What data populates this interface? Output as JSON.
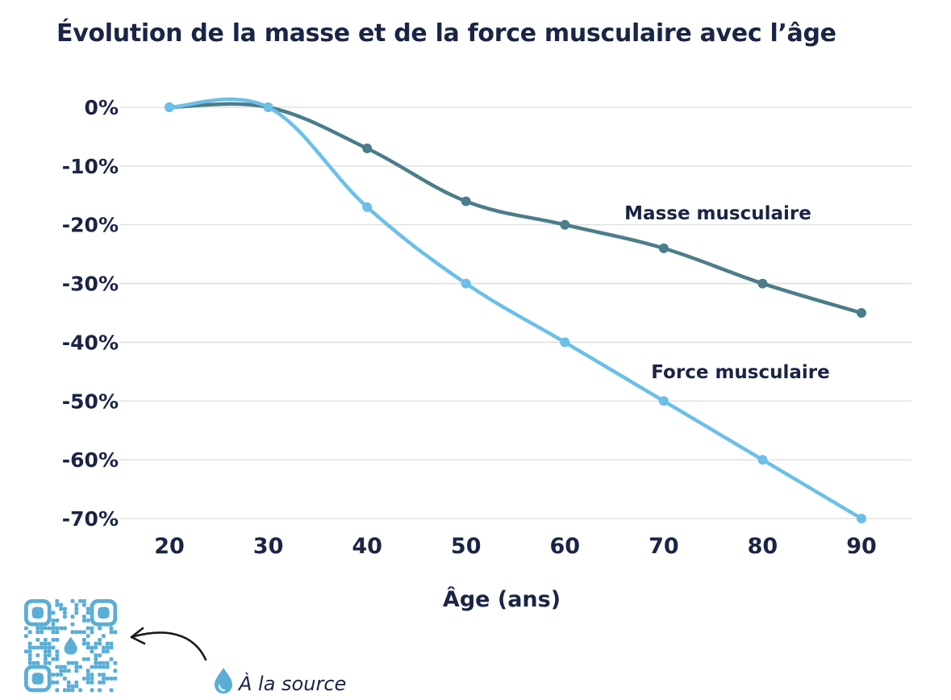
{
  "chart_data": {
    "type": "line",
    "title": "Évolution de la masse et de la force musculaire avec l’âge",
    "xlabel": "Âge (ans)",
    "ylabel": "",
    "x": [
      20,
      30,
      40,
      50,
      60,
      70,
      80,
      90
    ],
    "xlim": [
      20,
      90
    ],
    "ylim": [
      -70,
      0
    ],
    "y_ticks": [
      0,
      -10,
      -20,
      -30,
      -40,
      -50,
      -60,
      -70
    ],
    "y_tick_labels": [
      "0%",
      "-10%",
      "-20%",
      "-30%",
      "-40%",
      "-50%",
      "-60%",
      "-70%"
    ],
    "x_tick_labels": [
      "20",
      "30",
      "40",
      "50",
      "60",
      "70",
      "80",
      "90"
    ],
    "grid": true,
    "series": [
      {
        "name": "Masse musculaire",
        "color": "#4b7d8a",
        "values": [
          0,
          0,
          -7,
          -16,
          -20,
          -24,
          -30,
          -35
        ]
      },
      {
        "name": "Force musculaire",
        "color": "#6cbfe8",
        "values": [
          0,
          0,
          -17,
          -30,
          -40,
          -50,
          -60,
          -70
        ]
      }
    ]
  },
  "footer": {
    "source_text": "À la source",
    "qr_icon": "qr-code-icon",
    "arrow_icon": "curved-arrow-icon",
    "drop_icon": "water-drop-icon",
    "accent_color": "#5aaed6"
  }
}
